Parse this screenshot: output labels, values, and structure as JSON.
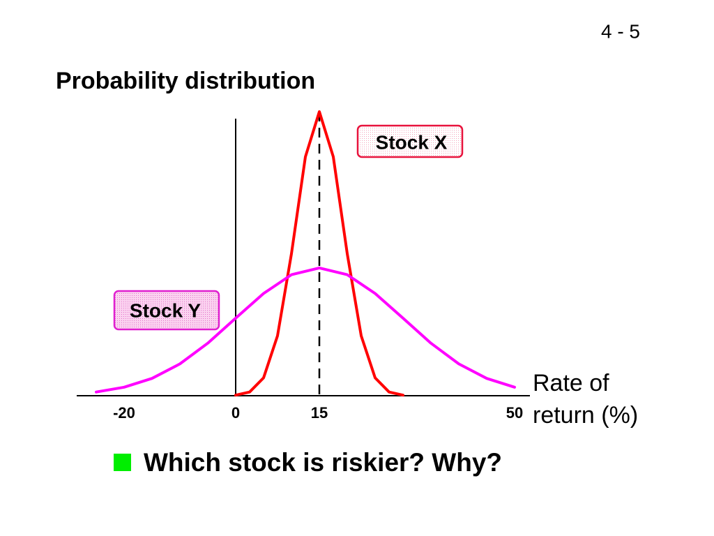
{
  "page_number": "4 - 5",
  "chart_data": {
    "type": "line",
    "title": "Probability distribution",
    "xlabel": "Rate of return (%)",
    "xlim": [
      -28,
      52
    ],
    "xticks": [
      -20,
      0,
      15,
      50
    ],
    "ylim": [
      0,
      1
    ],
    "reference_line_x": 15,
    "series": [
      {
        "name": "Stock X",
        "color": "#ff0000",
        "x": [
          0,
          2.5,
          5,
          7.5,
          10,
          12.5,
          15,
          17.5,
          20,
          22.5,
          25,
          27.5,
          30
        ],
        "values": [
          0.002,
          0.013,
          0.063,
          0.211,
          0.5,
          0.841,
          1,
          0.841,
          0.5,
          0.211,
          0.063,
          0.013,
          0.002
        ]
      },
      {
        "name": "Stock Y",
        "color": "#ff00ff",
        "x": [
          -25,
          -20,
          -15,
          -10,
          -5,
          0,
          5,
          10,
          15,
          20,
          25,
          30,
          35,
          40,
          45,
          50
        ],
        "values": [
          0.013,
          0.03,
          0.061,
          0.112,
          0.185,
          0.273,
          0.36,
          0.426,
          0.45,
          0.426,
          0.36,
          0.273,
          0.185,
          0.112,
          0.061,
          0.03
        ]
      }
    ]
  },
  "question": "Which stock is riskier?  Why?"
}
